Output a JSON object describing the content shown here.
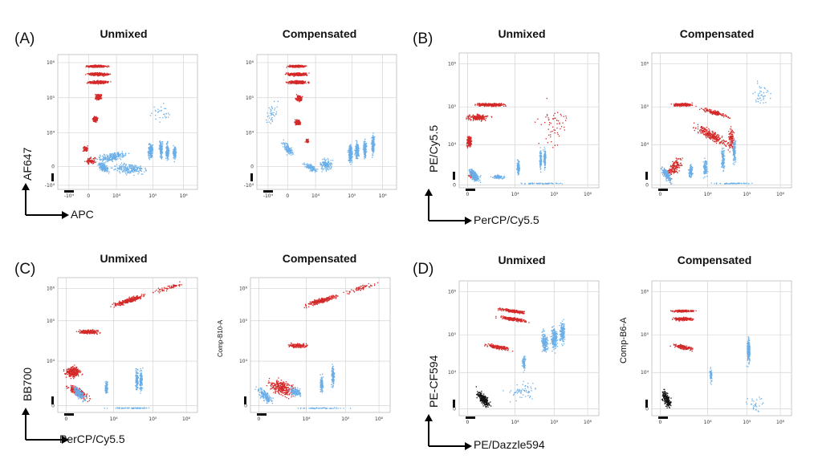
{
  "panels": [
    {
      "id": "A",
      "letter": "(A)",
      "x_axis": "APC",
      "y_axis": "AF647",
      "plots": [
        {
          "title": "Unmixed",
          "ylabel": ""
        },
        {
          "title": "Compensated",
          "ylabel": ""
        }
      ]
    },
    {
      "id": "B",
      "letter": "(B)",
      "x_axis": "PerCP/Cy5.5",
      "y_axis": "PE/Cy5.5",
      "plots": [
        {
          "title": "Unmixed",
          "ylabel": ""
        },
        {
          "title": "Compensated",
          "ylabel": ""
        }
      ]
    },
    {
      "id": "C",
      "letter": "(C)",
      "x_axis": "PerCP/Cy5.5",
      "y_axis": "BB700",
      "plots": [
        {
          "title": "Unmixed",
          "ylabel": ""
        },
        {
          "title": "Compensated",
          "ylabel": "Comp-B10-A"
        }
      ]
    },
    {
      "id": "D",
      "letter": "(D)",
      "x_axis": "PE/Dazzle594",
      "y_axis": "PE-CF594",
      "plots": [
        {
          "title": "Unmixed",
          "ylabel": ""
        },
        {
          "title": "Compensated",
          "ylabel": "Comp-B6-A"
        }
      ]
    }
  ],
  "chart_data": [
    {
      "type": "scatter",
      "panel": "A",
      "title": "Unmixed",
      "xlabel": "APC",
      "ylabel": "AF647",
      "x_ticks": [
        "-10⁴",
        "0",
        "10⁴",
        "10⁵",
        "10⁶"
      ],
      "y_ticks": [
        "10⁶",
        "10⁵",
        "10⁴",
        "0",
        "-10⁴"
      ],
      "series": [
        {
          "name": "",
          "color": "#d42a2a"
        },
        {
          "name": "",
          "color": "#6aaee8"
        }
      ]
    },
    {
      "type": "scatter",
      "panel": "A",
      "title": "Compensated",
      "x_ticks": [
        "-10⁴",
        "0",
        "10⁴",
        "10⁵",
        "10⁶"
      ],
      "y_ticks": [
        "10⁶",
        "10⁵",
        "10⁴",
        "0",
        "-10⁴"
      ],
      "series": [
        {
          "name": "",
          "color": "#d42a2a"
        },
        {
          "name": "",
          "color": "#6aaee8"
        }
      ]
    },
    {
      "type": "scatter",
      "panel": "B",
      "title": "Unmixed",
      "xlabel": "PerCP/Cy5.5",
      "ylabel": "PE/Cy5.5",
      "x_ticks": [
        "0",
        "10⁴",
        "10⁵",
        "10⁶"
      ],
      "y_ticks": [
        "10⁶",
        "10⁵",
        "10⁴",
        "0"
      ],
      "series": [
        {
          "name": "",
          "color": "#d42a2a"
        },
        {
          "name": "",
          "color": "#6aaee8"
        }
      ]
    },
    {
      "type": "scatter",
      "panel": "B",
      "title": "Compensated",
      "x_ticks": [
        "0",
        "10⁴",
        "10⁵",
        "10⁶"
      ],
      "y_ticks": [
        "10⁶",
        "10⁵",
        "10⁴",
        "0"
      ],
      "series": [
        {
          "name": "",
          "color": "#d42a2a"
        },
        {
          "name": "",
          "color": "#6aaee8"
        }
      ]
    },
    {
      "type": "scatter",
      "panel": "C",
      "title": "Unmixed",
      "xlabel": "PerCP/Cy5.5",
      "ylabel": "BB700",
      "x_ticks": [
        "0",
        "10⁴",
        "10⁵",
        "10⁶"
      ],
      "y_ticks": [
        "10⁶",
        "10⁵",
        "10⁴",
        "0"
      ],
      "series": [
        {
          "name": "",
          "color": "#d42a2a"
        },
        {
          "name": "",
          "color": "#6aaee8"
        }
      ]
    },
    {
      "type": "scatter",
      "panel": "C",
      "title": "Compensated",
      "ylabel": "Comp-B10-A",
      "x_ticks": [
        "0",
        "10⁴",
        "10⁵",
        "10⁶"
      ],
      "y_ticks": [
        "10⁶",
        "10⁵",
        "10⁴",
        "0"
      ],
      "series": [
        {
          "name": "",
          "color": "#d42a2a"
        },
        {
          "name": "",
          "color": "#6aaee8"
        }
      ]
    },
    {
      "type": "scatter",
      "panel": "D",
      "title": "Unmixed",
      "xlabel": "PE/Dazzle594",
      "ylabel": "PE-CF594",
      "x_ticks": [
        "0",
        "10⁴",
        "10⁵",
        "10⁶"
      ],
      "y_ticks": [
        "10⁶",
        "10⁵",
        "10⁴",
        "0"
      ],
      "series": [
        {
          "name": "",
          "color": "#d42a2a"
        },
        {
          "name": "",
          "color": "#6aaee8"
        },
        {
          "name": "",
          "color": "#111111"
        }
      ]
    },
    {
      "type": "scatter",
      "panel": "D",
      "title": "Compensated",
      "ylabel": "Comp-B6-A",
      "x_ticks": [
        "0",
        "10⁴",
        "10⁵",
        "10⁶"
      ],
      "y_ticks": [
        "10⁶",
        "10⁵",
        "10⁴",
        "0"
      ],
      "series": [
        {
          "name": "",
          "color": "#d42a2a"
        },
        {
          "name": "",
          "color": "#6aaee8"
        },
        {
          "name": "",
          "color": "#111111"
        }
      ]
    }
  ]
}
